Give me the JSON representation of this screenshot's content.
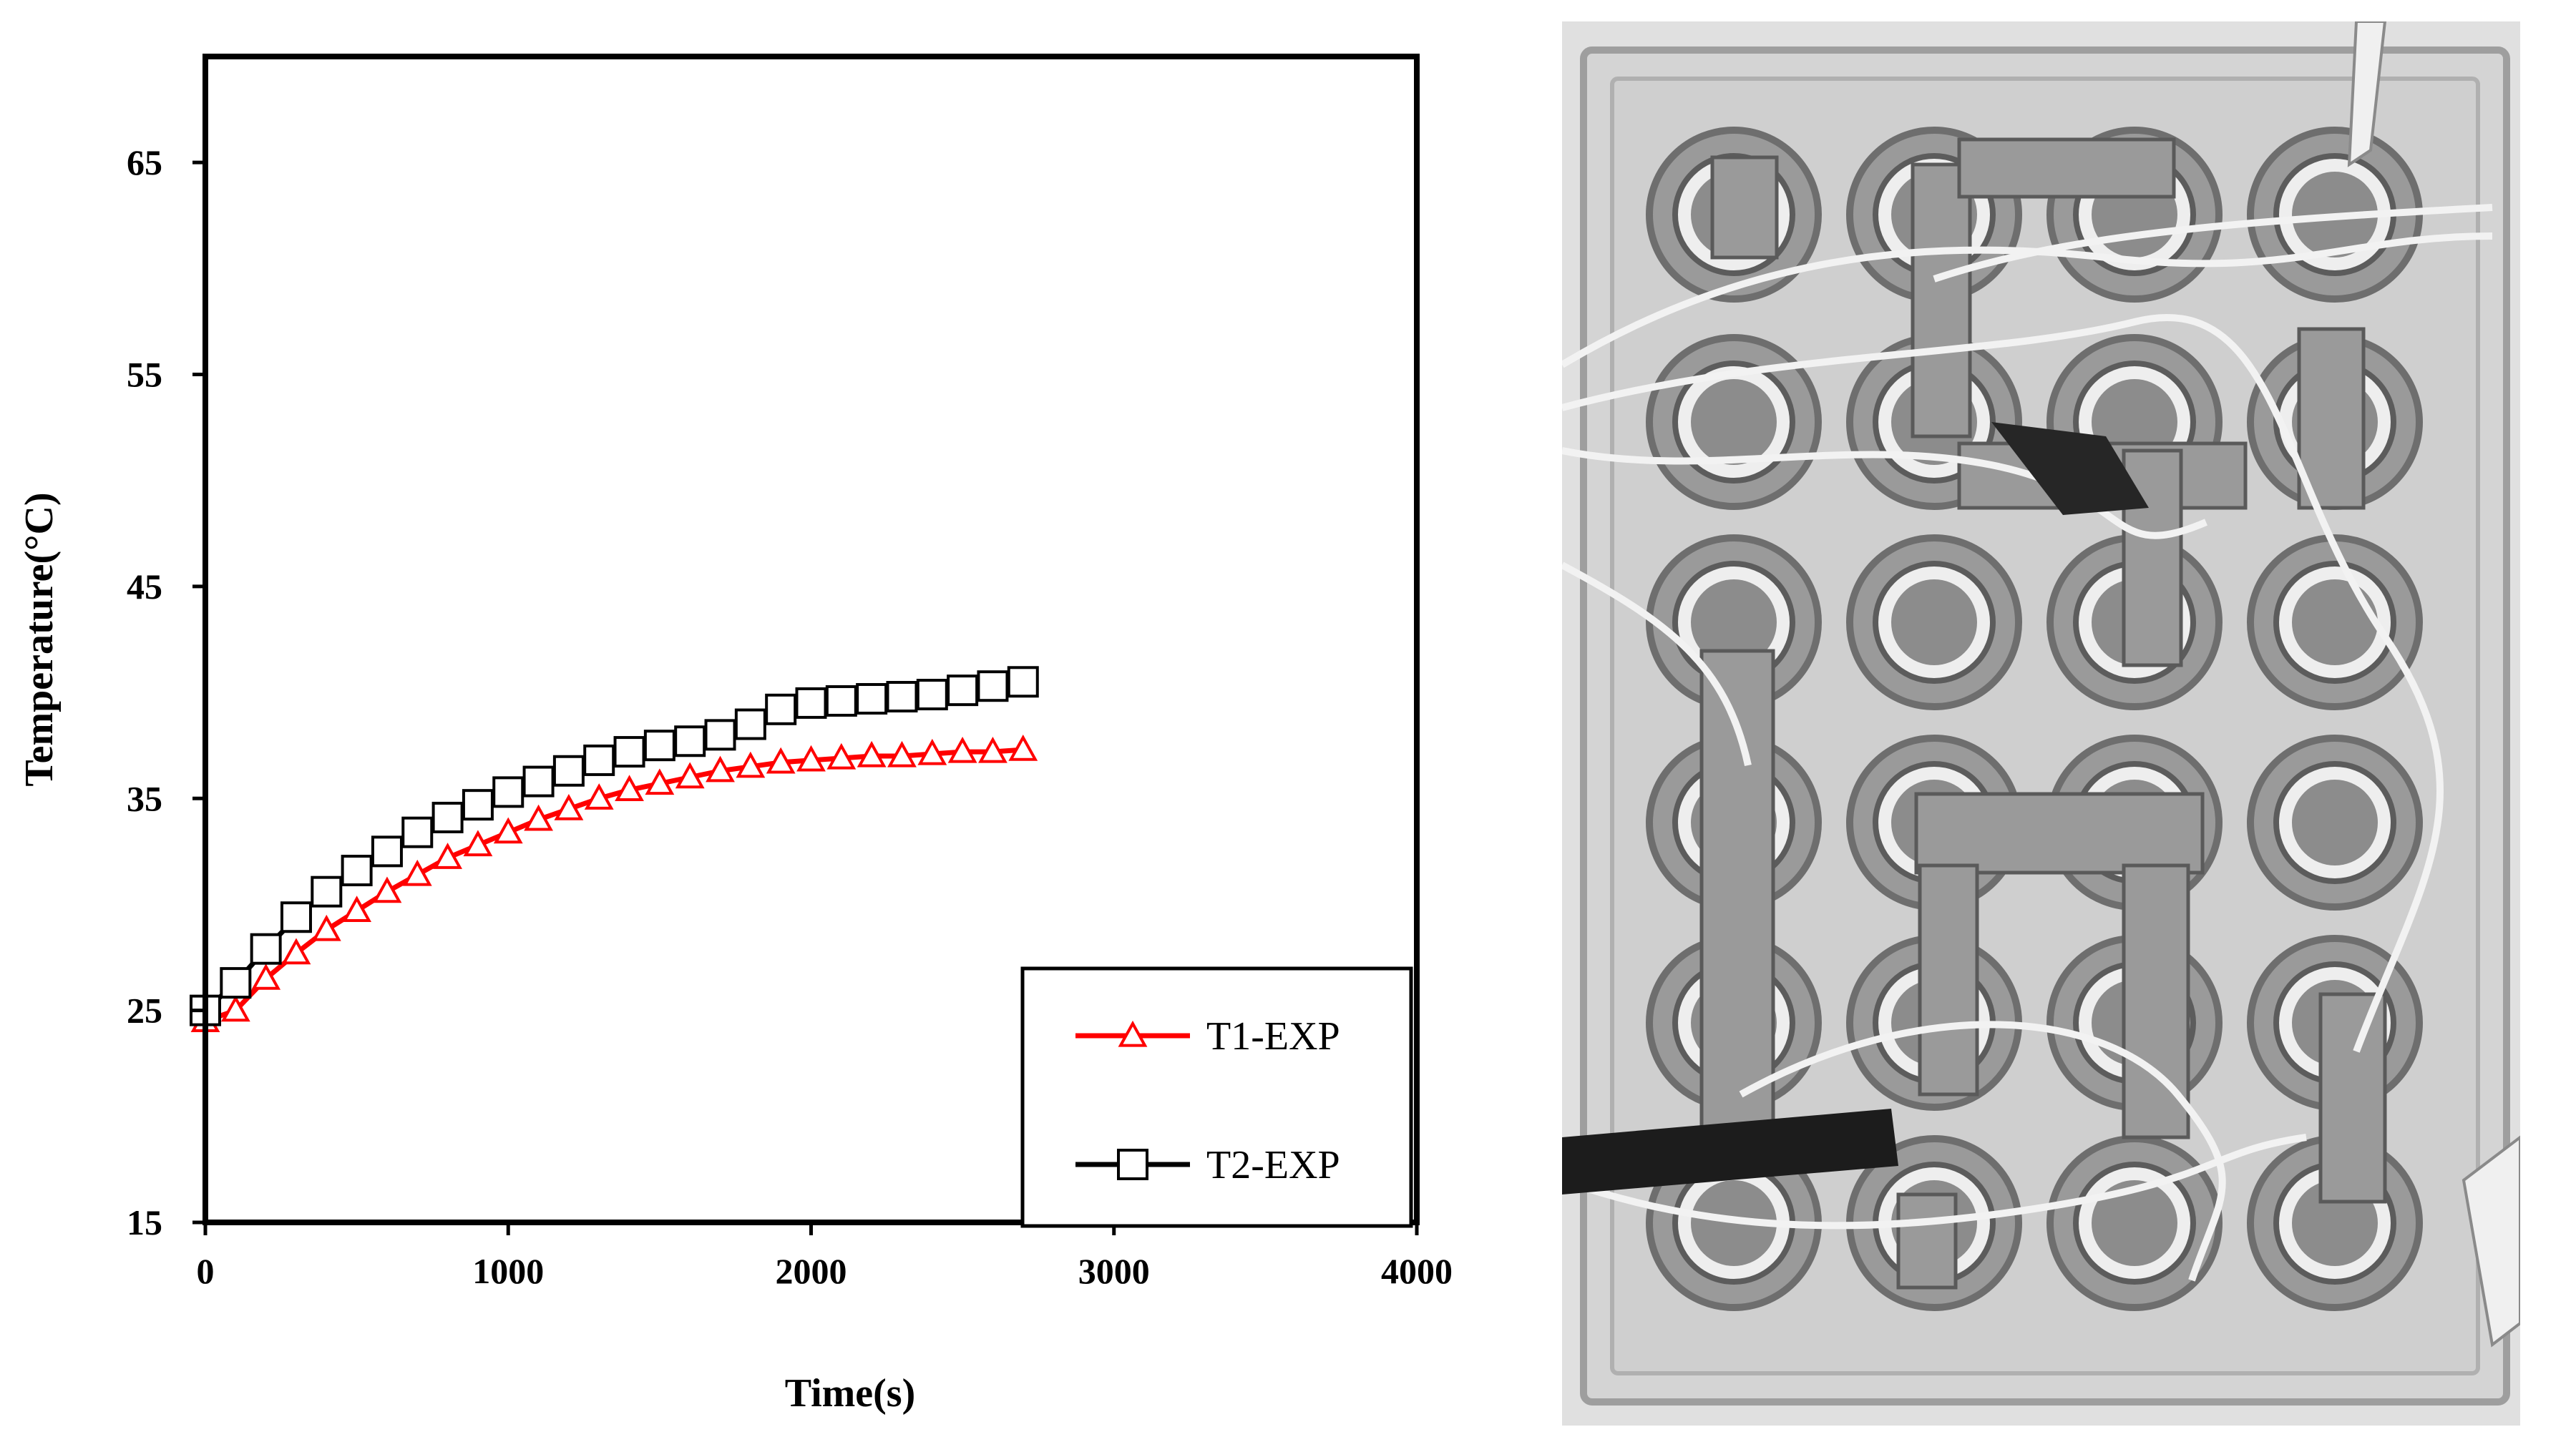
{
  "chart_data": {
    "type": "line",
    "xlabel": "Time(s)",
    "ylabel": "Temperature(°C)",
    "xlim": [
      0,
      4000
    ],
    "ylim": [
      15,
      70
    ],
    "xticks": [
      0,
      1000,
      2000,
      3000,
      4000
    ],
    "yticks": [
      15,
      25,
      35,
      45,
      55,
      65
    ],
    "grid": false,
    "legend_position": "bottom-right",
    "series": [
      {
        "name": "T1-EXP",
        "color": "#ff0000",
        "marker": "triangle-open",
        "x": [
          0,
          100,
          200,
          300,
          400,
          500,
          600,
          700,
          800,
          900,
          1000,
          1100,
          1200,
          1300,
          1400,
          1500,
          1600,
          1700,
          1800,
          1900,
          2000,
          2100,
          2200,
          2300,
          2400,
          2500,
          2600,
          2700
        ],
        "y": [
          24.5,
          25.0,
          26.5,
          27.7,
          28.8,
          29.7,
          30.6,
          31.4,
          32.2,
          32.8,
          33.4,
          34.0,
          34.5,
          35.0,
          35.4,
          35.7,
          36.0,
          36.3,
          36.5,
          36.7,
          36.8,
          36.9,
          37.0,
          37.0,
          37.1,
          37.2,
          37.2,
          37.3
        ]
      },
      {
        "name": "T2-EXP",
        "color": "#000000",
        "marker": "square-open",
        "x": [
          0,
          100,
          200,
          300,
          400,
          500,
          600,
          700,
          800,
          900,
          1000,
          1100,
          1200,
          1300,
          1400,
          1500,
          1600,
          1700,
          1800,
          1900,
          2000,
          2100,
          2200,
          2300,
          2400,
          2500,
          2600,
          2700
        ],
        "y": [
          25.0,
          26.3,
          27.9,
          29.4,
          30.6,
          31.6,
          32.5,
          33.4,
          34.1,
          34.7,
          35.3,
          35.8,
          36.3,
          36.8,
          37.2,
          37.5,
          37.7,
          38.0,
          38.5,
          39.2,
          39.5,
          39.6,
          39.7,
          39.8,
          39.9,
          40.1,
          40.3,
          40.5
        ]
      }
    ]
  },
  "photo": {
    "description_icon": "battery-module-photo",
    "palette": [
      "#e6e6e6",
      "#bdbdbd",
      "#7a7a7a",
      "#2b2b2b"
    ]
  }
}
